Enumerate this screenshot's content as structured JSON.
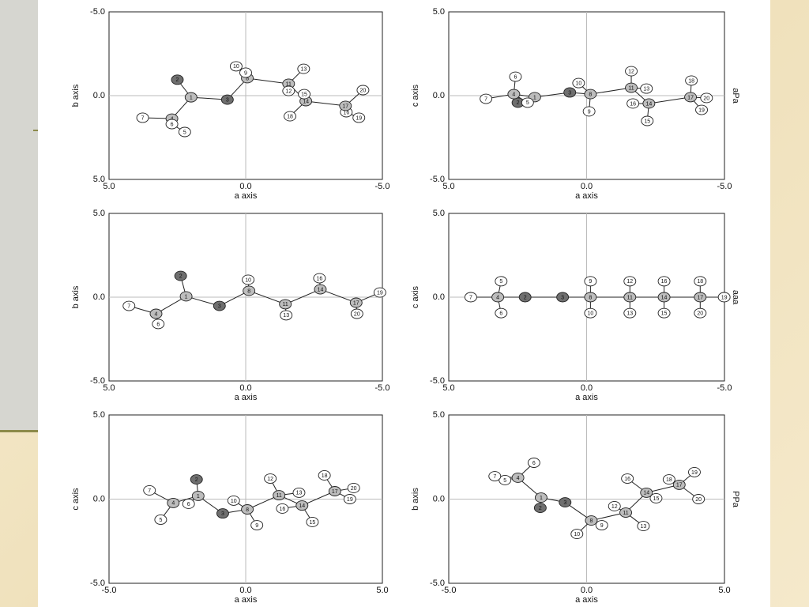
{
  "chart_data": [
    {
      "type": "scatter",
      "xlabel": "a axis",
      "ylabel": "b axis",
      "xlim": [
        5,
        -5
      ],
      "ylim": [
        5,
        -5
      ],
      "xticks": [
        {
          "value": 5,
          "label": "5.0"
        },
        {
          "value": 0,
          "label": "0.0"
        },
        {
          "value": -5,
          "label": "-5.0"
        }
      ],
      "yticks": [
        {
          "value": 5,
          "label": "5.0"
        },
        {
          "value": 0,
          "label": "0.0"
        },
        {
          "value": -5,
          "label": "-5.0"
        }
      ],
      "zero_lines": true,
      "labels": [
        "1",
        "2",
        "3",
        "4",
        "5",
        "6",
        "7",
        "8",
        "9",
        "10",
        "11",
        "12",
        "13",
        "14",
        "15",
        "16",
        "17",
        "18",
        "19",
        "20"
      ],
      "x": [
        2.0,
        2.5,
        0.67,
        2.7,
        2.23,
        2.7,
        3.77,
        -0.06,
        0,
        0.35,
        -1.57,
        -1.57,
        -2.12,
        -2.2,
        -2.14,
        -3.68,
        -3.65,
        -1.62,
        -4.14,
        -4.29
      ],
      "y": [
        0.1,
        -0.95,
        0.24,
        1.37,
        2.17,
        1.7,
        1.32,
        -1.04,
        -1.37,
        -1.75,
        -0.71,
        -0.28,
        -1.6,
        0.33,
        -0.09,
        0.99,
        0.61,
        1.23,
        1.32,
        -0.33
      ],
      "edges": [
        [
          "1",
          "2"
        ],
        [
          "1",
          "3"
        ],
        [
          "1",
          "4"
        ],
        [
          "4",
          "7"
        ],
        [
          "4",
          "6"
        ],
        [
          "6",
          "5"
        ],
        [
          "3",
          "8"
        ],
        [
          "8",
          "9"
        ],
        [
          "9",
          "10"
        ],
        [
          "8",
          "11"
        ],
        [
          "11",
          "13"
        ],
        [
          "11",
          "12"
        ],
        [
          "11",
          "14"
        ],
        [
          "14",
          "15"
        ],
        [
          "14",
          "18"
        ],
        [
          "14",
          "17"
        ],
        [
          "17",
          "20"
        ],
        [
          "17",
          "16"
        ],
        [
          "16",
          "19"
        ]
      ]
    },
    {
      "type": "scatter",
      "xlabel": "a axis",
      "ylabel": "c axis",
      "side_label": "aPa",
      "xlim": [
        5,
        -5
      ],
      "ylim": [
        -5,
        5
      ],
      "xticks": [
        {
          "value": 5,
          "label": "5.0"
        },
        {
          "value": 0,
          "label": "0.0"
        },
        {
          "value": -5,
          "label": "-5.0"
        }
      ],
      "yticks": [
        {
          "value": -5,
          "label": "-5.0"
        },
        {
          "value": 0,
          "label": "0.0"
        },
        {
          "value": 5,
          "label": "5.0"
        }
      ],
      "zero_lines": true,
      "labels": [
        "1",
        "2",
        "3",
        "4",
        "5",
        "6",
        "7",
        "8",
        "9",
        "10",
        "11",
        "12",
        "13",
        "14",
        "15",
        "16",
        "17",
        "18",
        "19",
        "20"
      ],
      "x": [
        1.88,
        2.49,
        0.61,
        2.64,
        2.14,
        2.58,
        3.65,
        -0.14,
        -0.09,
        0.29,
        -1.62,
        -1.62,
        -2.17,
        -2.26,
        -2.2,
        -1.68,
        -3.77,
        -3.8,
        -4.17,
        -4.35
      ],
      "y": [
        -0.09,
        -0.42,
        0.19,
        0.09,
        -0.42,
        1.13,
        -0.19,
        0.09,
        -0.94,
        0.75,
        0.47,
        1.46,
        0.42,
        -0.47,
        -1.51,
        -0.47,
        -0.09,
        0.9,
        -0.85,
        -0.14
      ],
      "edges": [
        [
          "1",
          "4"
        ],
        [
          "4",
          "2"
        ],
        [
          "4",
          "6"
        ],
        [
          "4",
          "7"
        ],
        [
          "4",
          "5"
        ],
        [
          "1",
          "3"
        ],
        [
          "3",
          "8"
        ],
        [
          "8",
          "9"
        ],
        [
          "8",
          "10"
        ],
        [
          "8",
          "11"
        ],
        [
          "11",
          "12"
        ],
        [
          "11",
          "13"
        ],
        [
          "11",
          "14"
        ],
        [
          "14",
          "15"
        ],
        [
          "14",
          "16"
        ],
        [
          "14",
          "17"
        ],
        [
          "17",
          "18"
        ],
        [
          "17",
          "19"
        ],
        [
          "17",
          "20"
        ]
      ]
    },
    {
      "type": "scatter",
      "xlabel": "a axis",
      "ylabel": "b axis",
      "xlim": [
        5,
        -5
      ],
      "ylim": [
        -5,
        5
      ],
      "xticks": [
        {
          "value": 5,
          "label": "5.0"
        },
        {
          "value": 0,
          "label": "0.0"
        },
        {
          "value": -5,
          "label": "-5.0"
        }
      ],
      "yticks": [
        {
          "value": -5,
          "label": "-5.0"
        },
        {
          "value": 0,
          "label": "0.0"
        },
        {
          "value": 5,
          "label": "5.0"
        }
      ],
      "zero_lines": true,
      "labels": [
        "1",
        "2",
        "3",
        "4",
        "6",
        "7",
        "8",
        "10",
        "11",
        "13",
        "14",
        "16",
        "17",
        "20",
        "19"
      ],
      "x": [
        2.18,
        2.38,
        0.96,
        3.28,
        3.2,
        4.27,
        -0.12,
        -0.09,
        -1.45,
        -1.48,
        -2.73,
        -2.7,
        -4.04,
        -4.07,
        -4.91
      ],
      "y": [
        0.05,
        1.27,
        -0.52,
        -0.99,
        -1.6,
        -0.52,
        0.38,
        1.04,
        -0.42,
        -1.08,
        0.47,
        1.13,
        -0.33,
        -0.99,
        0.28
      ],
      "edges": [
        [
          "1",
          "2"
        ],
        [
          "1",
          "3"
        ],
        [
          "1",
          "4"
        ],
        [
          "4",
          "7"
        ],
        [
          "4",
          "6"
        ],
        [
          "3",
          "8"
        ],
        [
          "8",
          "10"
        ],
        [
          "8",
          "11"
        ],
        [
          "11",
          "13"
        ],
        [
          "11",
          "14"
        ],
        [
          "14",
          "16"
        ],
        [
          "14",
          "17"
        ],
        [
          "17",
          "20"
        ],
        [
          "17",
          "19"
        ]
      ]
    },
    {
      "type": "scatter",
      "xlabel": "a axis",
      "ylabel": "c axis",
      "side_label": "aaa",
      "xlim": [
        5,
        -5
      ],
      "ylim": [
        -5,
        5
      ],
      "xticks": [
        {
          "value": 5,
          "label": "5.0"
        },
        {
          "value": 0,
          "label": "0.0"
        },
        {
          "value": -5,
          "label": "-5.0"
        }
      ],
      "yticks": [
        {
          "value": -5,
          "label": "-5.0"
        },
        {
          "value": 0,
          "label": "0.0"
        },
        {
          "value": 5,
          "label": "5.0"
        }
      ],
      "zero_lines": true,
      "labels": [
        "7",
        "4",
        "5",
        "6",
        "2",
        "3",
        "8",
        "9",
        "10",
        "11",
        "12",
        "13",
        "14",
        "16",
        "15",
        "17",
        "18",
        "20",
        "19"
      ],
      "x": [
        4.2,
        3.22,
        3.1,
        3.1,
        2.23,
        0.87,
        -0.14,
        -0.14,
        -0.14,
        -1.57,
        -1.57,
        -1.57,
        -2.81,
        -2.81,
        -2.81,
        -4.12,
        -4.12,
        -4.12,
        -4.99
      ],
      "y": [
        0,
        0,
        0.95,
        -0.95,
        0,
        0,
        0,
        0.95,
        -0.95,
        0,
        0.95,
        -0.95,
        0,
        0.95,
        -0.95,
        0,
        0.95,
        -0.95,
        0
      ],
      "edges": [
        [
          "7",
          "4"
        ],
        [
          "4",
          "5"
        ],
        [
          "4",
          "6"
        ],
        [
          "4",
          "2"
        ],
        [
          "2",
          "3"
        ],
        [
          "3",
          "8"
        ],
        [
          "8",
          "9"
        ],
        [
          "8",
          "10"
        ],
        [
          "8",
          "11"
        ],
        [
          "11",
          "12"
        ],
        [
          "11",
          "13"
        ],
        [
          "11",
          "14"
        ],
        [
          "14",
          "16"
        ],
        [
          "14",
          "15"
        ],
        [
          "14",
          "17"
        ],
        [
          "17",
          "18"
        ],
        [
          "17",
          "20"
        ],
        [
          "17",
          "19"
        ]
      ]
    },
    {
      "type": "scatter",
      "xlabel": "a axis",
      "ylabel": "c axis",
      "xlim": [
        -5,
        5
      ],
      "ylim": [
        -5,
        5
      ],
      "xticks": [
        {
          "value": -5,
          "label": "-5.0"
        },
        {
          "value": 0,
          "label": "0.0"
        },
        {
          "value": 5,
          "label": "5.0"
        }
      ],
      "yticks": [
        {
          "value": -5,
          "label": "-5.0"
        },
        {
          "value": 0,
          "label": "0.0"
        },
        {
          "value": 5,
          "label": "5.0"
        }
      ],
      "zero_lines": true,
      "labels": [
        "1",
        "2",
        "3",
        "4",
        "5",
        "6",
        "7",
        "8",
        "9",
        "10",
        "11",
        "12",
        "13",
        "14",
        "15",
        "16",
        "17",
        "18",
        "19",
        "20"
      ],
      "x": [
        -1.74,
        -1.8,
        -0.84,
        -2.65,
        -3.11,
        -2.09,
        -3.52,
        0.06,
        0.41,
        -0.44,
        1.22,
        0.9,
        1.95,
        2.06,
        2.44,
        1.34,
        3.26,
        2.88,
        3.81,
        3.95
      ],
      "y": [
        0.19,
        1.17,
        -0.85,
        -0.23,
        -1.22,
        -0.28,
        0.52,
        -0.61,
        -1.55,
        -0.09,
        0.23,
        1.22,
        0.38,
        -0.38,
        -1.36,
        -0.56,
        0.47,
        1.41,
        0,
        0.66
      ],
      "edges": [
        [
          "1",
          "2"
        ],
        [
          "1",
          "4"
        ],
        [
          "1",
          "3"
        ],
        [
          "1",
          "6"
        ],
        [
          "4",
          "7"
        ],
        [
          "4",
          "5"
        ],
        [
          "3",
          "8"
        ],
        [
          "8",
          "9"
        ],
        [
          "8",
          "10"
        ],
        [
          "8",
          "11"
        ],
        [
          "11",
          "12"
        ],
        [
          "11",
          "13"
        ],
        [
          "11",
          "14"
        ],
        [
          "14",
          "15"
        ],
        [
          "14",
          "16"
        ],
        [
          "14",
          "17"
        ],
        [
          "17",
          "18"
        ],
        [
          "17",
          "19"
        ],
        [
          "17",
          "20"
        ]
      ]
    },
    {
      "type": "scatter",
      "xlabel": "a axis",
      "ylabel": "b axis",
      "side_label": "PPa",
      "xlim": [
        -5,
        5
      ],
      "ylim": [
        -5,
        5
      ],
      "xticks": [
        {
          "value": -5,
          "label": "-5.0"
        },
        {
          "value": 0,
          "label": "0.0"
        },
        {
          "value": 5,
          "label": "5.0"
        }
      ],
      "yticks": [
        {
          "value": -5,
          "label": "-5.0"
        },
        {
          "value": 0,
          "label": "0.0"
        },
        {
          "value": 5,
          "label": "5.0"
        }
      ],
      "zero_lines": true,
      "labels": [
        "1",
        "2",
        "3",
        "4",
        "5",
        "6",
        "7",
        "8",
        "9",
        "10",
        "11",
        "12",
        "13",
        "14",
        "15",
        "16",
        "17",
        "18",
        "19",
        "20"
      ],
      "x": [
        -1.65,
        -1.68,
        -0.78,
        -2.49,
        -2.96,
        -1.91,
        -3.33,
        0.17,
        0.55,
        -0.35,
        1.42,
        1.01,
        2.06,
        2.17,
        2.52,
        1.48,
        3.36,
        2.99,
        3.91,
        4.06
      ],
      "y": [
        0.09,
        -0.52,
        -0.19,
        1.27,
        1.13,
        2.16,
        1.36,
        -1.27,
        -1.55,
        -2.07,
        -0.8,
        -0.42,
        -1.6,
        0.38,
        0.05,
        1.22,
        0.85,
        1.17,
        1.6,
        0
      ],
      "edges": [
        [
          "1",
          "2"
        ],
        [
          "1",
          "3"
        ],
        [
          "1",
          "4"
        ],
        [
          "4",
          "5"
        ],
        [
          "4",
          "6"
        ],
        [
          "4",
          "7"
        ],
        [
          "3",
          "8"
        ],
        [
          "8",
          "9"
        ],
        [
          "8",
          "10"
        ],
        [
          "8",
          "11"
        ],
        [
          "11",
          "12"
        ],
        [
          "11",
          "13"
        ],
        [
          "11",
          "14"
        ],
        [
          "14",
          "15"
        ],
        [
          "14",
          "16"
        ],
        [
          "14",
          "17"
        ],
        [
          "17",
          "18"
        ],
        [
          "17",
          "19"
        ],
        [
          "17",
          "20"
        ]
      ]
    }
  ],
  "atom_fill": {
    "1": "#bdbdbd",
    "4": "#bdbdbd",
    "8": "#bdbdbd",
    "11": "#bdbdbd",
    "14": "#bdbdbd",
    "17": "#bdbdbd",
    "2": "#6f6f6f",
    "3": "#6f6f6f"
  }
}
